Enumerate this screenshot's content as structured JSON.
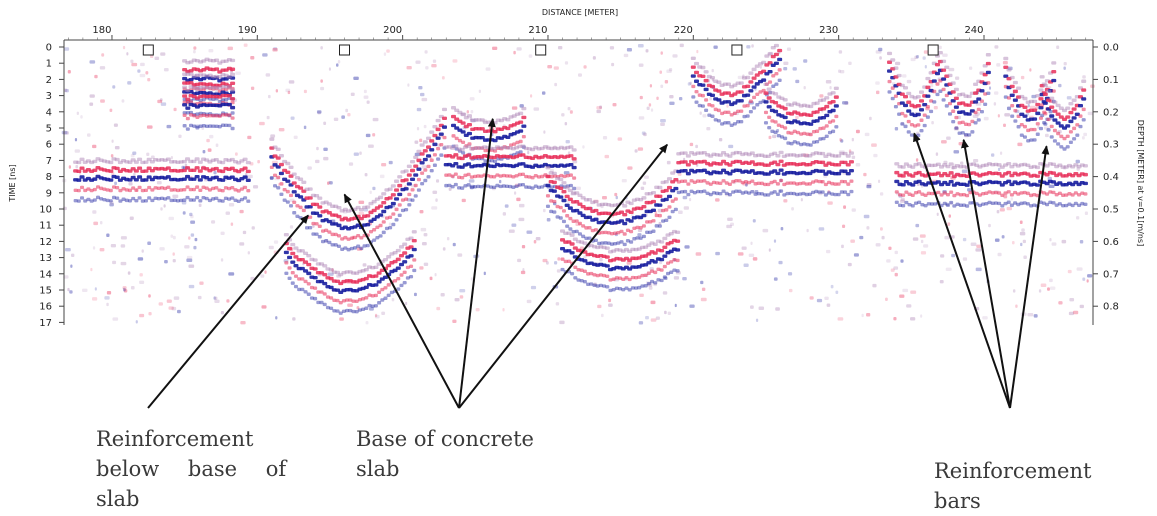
{
  "chart_data": {
    "type": "heatmap",
    "title": "",
    "top_axis_label": "DISTANCE [METER]",
    "left_axis_label": "TIME [ns]",
    "right_axis_label": "DEPTH [METER] at v=0.1[m/ns]",
    "x_range": [
      176.7,
      247.5
    ],
    "time_range": [
      0,
      17.3
    ],
    "depth_range": [
      0,
      0.865
    ],
    "x_ticks": [
      180,
      190,
      200,
      210,
      220,
      230,
      240
    ],
    "time_ticks": [
      0,
      1,
      2,
      3,
      4,
      5,
      6,
      7,
      8,
      9,
      10,
      11,
      12,
      13,
      14,
      15,
      16,
      17
    ],
    "depth_ticks": [
      "0.0",
      "0.1",
      "0.2",
      "0.3",
      "0.4",
      "0.5",
      "0.6",
      "0.7",
      "0.8"
    ],
    "marker_positions_m": [
      182.5,
      196,
      209.5,
      223,
      236.5
    ],
    "colors": {
      "positive": "#e8305a",
      "negative": "#1a1fa0",
      "faint": "#b088b8"
    },
    "reflectors": [
      {
        "kind": "flat",
        "x": [
          177.5,
          189.5
        ],
        "t": 7.2
      },
      {
        "kind": "flat",
        "x": [
          185,
          188.5
        ],
        "t": 1.0
      },
      {
        "kind": "flat",
        "x": [
          185,
          188.5
        ],
        "t": 1.9
      },
      {
        "kind": "flat",
        "x": [
          185,
          188.5
        ],
        "t": 2.7
      },
      {
        "kind": "hyperbola",
        "x0": 196.3,
        "t0": 10.3,
        "k": 0.8,
        "x": [
          191,
          203
        ]
      },
      {
        "kind": "hyperbola",
        "x0": 196.3,
        "t0": 14.2,
        "k": 0.8,
        "x": [
          192,
          201
        ]
      },
      {
        "kind": "hyperbola",
        "x0": 206,
        "t0": 4.8,
        "k": 0.5,
        "x": [
          203.5,
          208.5
        ]
      },
      {
        "kind": "flat",
        "x": [
          203,
          212
        ],
        "t": 6.4
      },
      {
        "kind": "hyperbola",
        "x0": 214.5,
        "t0": 10.0,
        "k": 0.65,
        "x": [
          210,
          219
        ]
      },
      {
        "kind": "hyperbola",
        "x0": 215,
        "t0": 12.8,
        "k": 0.6,
        "x": [
          211,
          219
        ]
      },
      {
        "kind": "flat",
        "x": [
          219,
          231
        ],
        "t": 6.8
      },
      {
        "kind": "hyperbola",
        "x0": 222.5,
        "t0": 2.5,
        "k": 0.55,
        "x": [
          220,
          226
        ]
      },
      {
        "kind": "hyperbola",
        "x0": 227.5,
        "t0": 3.8,
        "k": 0.55,
        "x": [
          225,
          230
        ]
      },
      {
        "kind": "hyperbola",
        "x0": 235.2,
        "t0": 3.2,
        "k": 1.2,
        "x": [
          233.5,
          237
        ]
      },
      {
        "kind": "hyperbola",
        "x0": 238.7,
        "t0": 3.2,
        "k": 1.2,
        "x": [
          237,
          240.5
        ]
      },
      {
        "kind": "hyperbola",
        "x0": 243.2,
        "t0": 3.5,
        "k": 1.2,
        "x": [
          241.5,
          245
        ]
      },
      {
        "kind": "hyperbola",
        "x0": 245.5,
        "t0": 4.0,
        "k": 1.2,
        "x": [
          244,
          247
        ]
      },
      {
        "kind": "flat",
        "x": [
          234,
          247
        ],
        "t": 7.5
      }
    ],
    "annotations": [
      {
        "lines": [
          "Reinforcement",
          "below base of",
          "slab"
        ],
        "targets": [
          [
            193.5,
            10.6
          ]
        ]
      },
      {
        "lines": [
          "Base of concrete",
          "slab"
        ],
        "targets": [
          [
            196.0,
            9.3
          ],
          [
            206.2,
            4.6
          ],
          [
            218.2,
            6.2
          ]
        ]
      },
      {
        "lines": [
          "Reinforcement",
          "bars"
        ],
        "targets": [
          [
            235.2,
            5.5
          ],
          [
            238.6,
            5.9
          ],
          [
            244.3,
            6.3
          ]
        ]
      }
    ]
  }
}
